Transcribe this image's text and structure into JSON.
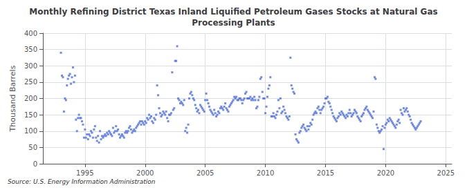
{
  "chart_data": {
    "type": "scatter",
    "title": "Monthly Refining District Texas Inland Liquified Petroleum Gases Stocks at Natural Gas\nProcessing Plants",
    "ylabel": "Thousand Barrels",
    "annotations": [
      "Source: U.S. Energy Information Administration"
    ],
    "marker": "square",
    "grid": true,
    "xlim": [
      1991.5,
      2025.5
    ],
    "xticks": [
      1995,
      2000,
      2005,
      2010,
      2015,
      2020,
      2025
    ],
    "ylim": [
      0,
      400
    ],
    "yticks": [
      0,
      50,
      100,
      150,
      200,
      250,
      300,
      350,
      400
    ],
    "x": [
      1993.0,
      1993.083,
      1993.167,
      1993.25,
      1993.333,
      1993.417,
      1993.5,
      1993.583,
      1993.667,
      1993.75,
      1993.833,
      1993.917,
      1994.0,
      1994.083,
      1994.167,
      1994.25,
      1994.333,
      1994.417,
      1994.5,
      1994.583,
      1994.667,
      1994.75,
      1994.833,
      1994.917,
      1995.0,
      1995.083,
      1995.167,
      1995.25,
      1995.333,
      1995.417,
      1995.5,
      1995.583,
      1995.667,
      1995.75,
      1995.833,
      1995.917,
      1996.0,
      1996.083,
      1996.167,
      1996.25,
      1996.333,
      1996.417,
      1996.5,
      1996.583,
      1996.667,
      1996.75,
      1996.833,
      1996.917,
      1997.0,
      1997.083,
      1997.167,
      1997.25,
      1997.333,
      1997.417,
      1997.5,
      1997.583,
      1997.667,
      1997.75,
      1997.833,
      1997.917,
      1998.0,
      1998.083,
      1998.167,
      1998.25,
      1998.333,
      1998.417,
      1998.5,
      1998.583,
      1998.667,
      1998.75,
      1998.833,
      1998.917,
      1999.0,
      1999.083,
      1999.167,
      1999.25,
      1999.333,
      1999.417,
      1999.5,
      1999.583,
      1999.667,
      1999.75,
      1999.833,
      1999.917,
      2000.0,
      2000.083,
      2000.167,
      2000.25,
      2000.333,
      2000.417,
      2000.5,
      2000.583,
      2000.667,
      2000.75,
      2000.833,
      2000.917,
      2001.0,
      2001.083,
      2001.167,
      2001.25,
      2001.333,
      2001.417,
      2001.5,
      2001.583,
      2001.667,
      2001.75,
      2001.833,
      2001.917,
      2002.0,
      2002.083,
      2002.167,
      2002.25,
      2002.333,
      2002.417,
      2002.5,
      2002.583,
      2002.667,
      2002.75,
      2002.833,
      2002.917,
      2003.0,
      2003.083,
      2003.167,
      2003.25,
      2003.333,
      2003.417,
      2003.5,
      2003.583,
      2003.667,
      2003.75,
      2003.833,
      2003.917,
      2004.0,
      2004.083,
      2004.167,
      2004.25,
      2004.333,
      2004.417,
      2004.5,
      2004.583,
      2004.667,
      2004.75,
      2004.833,
      2004.917,
      2005.0,
      2005.083,
      2005.167,
      2005.25,
      2005.333,
      2005.417,
      2005.5,
      2005.583,
      2005.667,
      2005.75,
      2005.833,
      2005.917,
      2006.0,
      2006.083,
      2006.167,
      2006.25,
      2006.333,
      2006.417,
      2006.5,
      2006.583,
      2006.667,
      2006.75,
      2006.833,
      2006.917,
      2007.0,
      2007.083,
      2007.167,
      2007.25,
      2007.333,
      2007.417,
      2007.5,
      2007.583,
      2007.667,
      2007.75,
      2007.833,
      2007.917,
      2008.0,
      2008.083,
      2008.167,
      2008.25,
      2008.333,
      2008.417,
      2008.5,
      2008.583,
      2008.667,
      2008.75,
      2008.833,
      2008.917,
      2009.0,
      2009.083,
      2009.167,
      2009.25,
      2009.333,
      2009.417,
      2009.5,
      2009.583,
      2009.667,
      2009.75,
      2009.833,
      2009.917,
      2010.0,
      2010.083,
      2010.167,
      2010.25,
      2010.333,
      2010.417,
      2010.5,
      2010.583,
      2010.667,
      2010.75,
      2010.833,
      2010.917,
      2011.0,
      2011.083,
      2011.167,
      2011.25,
      2011.333,
      2011.417,
      2011.5,
      2011.583,
      2011.667,
      2011.75,
      2011.833,
      2011.917,
      2012.0,
      2012.083,
      2012.167,
      2012.25,
      2012.333,
      2012.417,
      2012.5,
      2012.583,
      2012.667,
      2012.75,
      2012.833,
      2012.917,
      2013.0,
      2013.083,
      2013.167,
      2013.25,
      2013.333,
      2013.417,
      2013.5,
      2013.583,
      2013.667,
      2013.75,
      2013.833,
      2013.917,
      2014.0,
      2014.083,
      2014.167,
      2014.25,
      2014.333,
      2014.417,
      2014.5,
      2014.583,
      2014.667,
      2014.75,
      2014.833,
      2014.917,
      2015.0,
      2015.083,
      2015.167,
      2015.25,
      2015.333,
      2015.417,
      2015.5,
      2015.583,
      2015.667,
      2015.75,
      2015.833,
      2015.917,
      2016.0,
      2016.083,
      2016.167,
      2016.25,
      2016.333,
      2016.417,
      2016.5,
      2016.583,
      2016.667,
      2016.75,
      2016.833,
      2016.917,
      2017.0,
      2017.083,
      2017.167,
      2017.25,
      2017.333,
      2017.417,
      2017.5,
      2017.583,
      2017.667,
      2017.75,
      2017.833,
      2017.917,
      2018.0,
      2018.083,
      2018.167,
      2018.25,
      2018.333,
      2018.417,
      2018.5,
      2018.583,
      2018.667,
      2018.75,
      2018.833,
      2018.917,
      2019.0,
      2019.083,
      2019.167,
      2019.25,
      2019.333,
      2019.417,
      2019.5,
      2019.583,
      2019.667,
      2019.75,
      2019.833,
      2019.917,
      2020.0,
      2020.083,
      2020.167,
      2020.25,
      2020.333,
      2020.417,
      2020.5,
      2020.583,
      2020.667,
      2020.75,
      2020.833,
      2020.917,
      2021.0,
      2021.083,
      2021.167,
      2021.25,
      2021.333,
      2021.417,
      2021.5,
      2021.583,
      2021.667,
      2021.75,
      2021.833,
      2021.917,
      2022.0,
      2022.083,
      2022.167,
      2022.25,
      2022.333,
      2022.417,
      2022.5,
      2022.583,
      2022.667,
      2022.75,
      2022.833,
      2022.917
    ],
    "values": [
      340,
      270,
      265,
      160,
      200,
      195,
      240,
      260,
      270,
      275,
      245,
      265,
      295,
      250,
      270,
      135,
      100,
      140,
      150,
      140,
      140,
      130,
      120,
      80,
      105,
      80,
      90,
      75,
      90,
      85,
      100,
      95,
      80,
      105,
      115,
      80,
      70,
      85,
      65,
      100,
      75,
      85,
      80,
      85,
      90,
      85,
      95,
      90,
      100,
      95,
      90,
      85,
      110,
      95,
      100,
      115,
      100,
      105,
      90,
      80,
      85,
      90,
      85,
      80,
      95,
      100,
      95,
      100,
      110,
      115,
      105,
      95,
      100,
      105,
      100,
      110,
      115,
      120,
      125,
      130,
      120,
      130,
      125,
      120,
      130,
      125,
      140,
      135,
      150,
      140,
      145,
      130,
      125,
      140,
      135,
      150,
      240,
      210,
      170,
      155,
      145,
      150,
      160,
      155,
      150,
      160,
      140,
      130,
      150,
      150,
      155,
      280,
      165,
      170,
      315,
      315,
      360,
      200,
      195,
      185,
      190,
      185,
      180,
      195,
      100,
      110,
      95,
      120,
      200,
      215,
      220,
      210,
      200,
      195,
      180,
      170,
      160,
      165,
      155,
      180,
      175,
      170,
      165,
      160,
      195,
      215,
      195,
      185,
      175,
      165,
      160,
      155,
      150,
      165,
      155,
      145,
      150,
      160,
      155,
      170,
      175,
      170,
      165,
      175,
      185,
      170,
      165,
      160,
      175,
      180,
      185,
      190,
      195,
      205,
      200,
      205,
      195,
      195,
      200,
      200,
      195,
      185,
      195,
      200,
      215,
      220,
      200,
      200,
      200,
      205,
      195,
      200,
      195,
      205,
      195,
      170,
      175,
      195,
      205,
      260,
      265,
      220,
      200,
      200,
      155,
      175,
      205,
      230,
      240,
      265,
      145,
      145,
      155,
      145,
      140,
      150,
      160,
      195,
      170,
      200,
      155,
      160,
      175,
      165,
      155,
      145,
      140,
      135,
      145,
      325,
      240,
      230,
      220,
      215,
      90,
      75,
      70,
      65,
      95,
      100,
      110,
      115,
      120,
      110,
      105,
      100,
      115,
      105,
      115,
      125,
      120,
      135,
      150,
      155,
      160,
      155,
      170,
      175,
      165,
      155,
      165,
      170,
      175,
      185,
      200,
      200,
      205,
      190,
      185,
      175,
      165,
      155,
      145,
      140,
      135,
      130,
      140,
      145,
      155,
      150,
      160,
      155,
      150,
      145,
      140,
      150,
      145,
      155,
      165,
      155,
      145,
      150,
      155,
      165,
      160,
      155,
      145,
      140,
      135,
      130,
      145,
      150,
      155,
      165,
      170,
      175,
      165,
      160,
      155,
      150,
      145,
      140,
      160,
      265,
      260,
      120,
      110,
      100,
      95,
      100,
      105,
      115,
      45,
      110,
      120,
      125,
      135,
      130,
      140,
      135,
      130,
      125,
      120,
      115,
      110,
      120,
      130,
      135,
      125,
      165,
      155,
      150,
      170,
      160,
      165,
      170,
      160,
      150,
      145,
      135,
      125,
      120,
      115,
      110,
      105,
      110,
      115,
      120,
      125,
      130
    ]
  }
}
